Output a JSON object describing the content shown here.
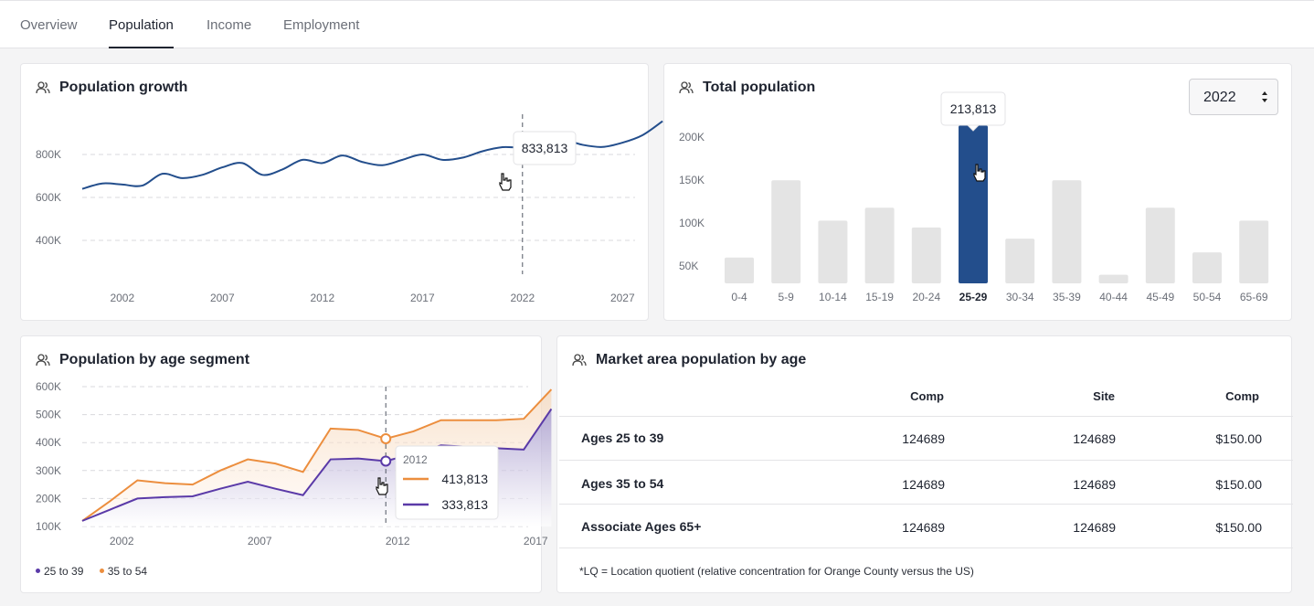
{
  "tabs": [
    {
      "label": "Overview",
      "active": false
    },
    {
      "label": "Population",
      "active": true
    },
    {
      "label": "Income",
      "active": false
    },
    {
      "label": "Employment",
      "active": false
    }
  ],
  "population_growth": {
    "title": "Population growth",
    "tooltip": "833,813",
    "y_ticks": [
      "800K",
      "600K",
      "400K"
    ],
    "x_ticks": [
      "2002",
      "2007",
      "2012",
      "2017",
      "2022",
      "2027"
    ]
  },
  "total_population": {
    "title": "Total population",
    "year_select": "2022",
    "tooltip": "213,813",
    "y_ticks": [
      "200K",
      "150K",
      "100K",
      "50K"
    ],
    "highlight_color": "#234e8c",
    "bar_color": "#e4e4e4"
  },
  "age_segment": {
    "title": "Population by age segment",
    "y_ticks": [
      "600K",
      "500K",
      "400K",
      "300K",
      "200K",
      "100K"
    ],
    "x_ticks": [
      "2002",
      "2007",
      "2012",
      "2017"
    ],
    "tooltip": {
      "year": "2012",
      "value_a": "413,813",
      "value_b": "333,813"
    },
    "legend": [
      {
        "label": "25 to 39",
        "color": "#5a3aa8"
      },
      {
        "label": "35 to 54",
        "color": "#ec8e3e"
      }
    ]
  },
  "market_area": {
    "title": "Market area population by age",
    "columns": [
      "Comp",
      "Site",
      "Comp"
    ],
    "rows": [
      {
        "label": "Ages 25 to 39",
        "values": [
          "124689",
          "124689",
          "$150.00"
        ]
      },
      {
        "label": "Ages 35 to 54",
        "values": [
          "124689",
          "124689",
          "$150.00"
        ]
      },
      {
        "label": "Associate Ages 65+",
        "values": [
          "124689",
          "124689",
          "$150.00"
        ]
      }
    ],
    "footnote": "*LQ = Location quotient (relative concentration for Orange County versus the US)"
  },
  "chart_data": [
    {
      "type": "line",
      "title": "Population growth",
      "xlabel": "",
      "ylabel": "",
      "x": [
        2000,
        2001,
        2002,
        2003,
        2004,
        2005,
        2006,
        2007,
        2008,
        2009,
        2010,
        2011,
        2012,
        2013,
        2014,
        2015,
        2016,
        2017,
        2018,
        2019,
        2020,
        2021,
        2022,
        2023,
        2024,
        2025,
        2026,
        2027,
        2028,
        2029
      ],
      "series": [
        {
          "values": [
            640000,
            665000,
            660000,
            655000,
            710000,
            690000,
            705000,
            740000,
            760000,
            705000,
            730000,
            775000,
            760000,
            795000,
            765000,
            750000,
            775000,
            800000,
            775000,
            785000,
            815000,
            833813,
            833813,
            860000,
            870000,
            845000,
            835000,
            855000,
            890000,
            955000
          ]
        }
      ],
      "highlight": {
        "x": 2022,
        "value": 833813
      },
      "ylim": [
        300000,
        960000
      ],
      "grid": true
    },
    {
      "type": "bar",
      "title": "Total population",
      "categories": [
        "0-4",
        "5-9",
        "10-14",
        "15-19",
        "20-24",
        "25-29",
        "30-34",
        "35-39",
        "40-44",
        "45-49",
        "50-54",
        "65-69"
      ],
      "values": [
        60000,
        150000,
        103000,
        118000,
        95000,
        213813,
        82000,
        150000,
        40000,
        118000,
        66000,
        103000
      ],
      "highlight": "25-29",
      "ylim": [
        30000,
        215000
      ],
      "grid": false
    },
    {
      "type": "area",
      "title": "Population by age segment",
      "x": [
        2001,
        2002,
        2003,
        2004,
        2005,
        2006,
        2007,
        2008,
        2009,
        2010,
        2011,
        2012,
        2013,
        2014,
        2015,
        2016,
        2017,
        2018
      ],
      "series": [
        {
          "name": "25 to 39",
          "values": [
            120000,
            160000,
            200000,
            205000,
            208000,
            235000,
            260000,
            235000,
            212000,
            340000,
            343000,
            333813,
            360000,
            390000,
            385000,
            380000,
            375000,
            520000
          ]
        },
        {
          "name": "35 to 54",
          "values": [
            120000,
            190000,
            265000,
            255000,
            250000,
            300000,
            340000,
            325000,
            295000,
            450000,
            445000,
            413813,
            440000,
            480000,
            480000,
            480000,
            485000,
            590000
          ]
        }
      ],
      "highlight": {
        "x": 2012
      },
      "ylim": [
        100000,
        600000
      ],
      "grid": true
    }
  ]
}
